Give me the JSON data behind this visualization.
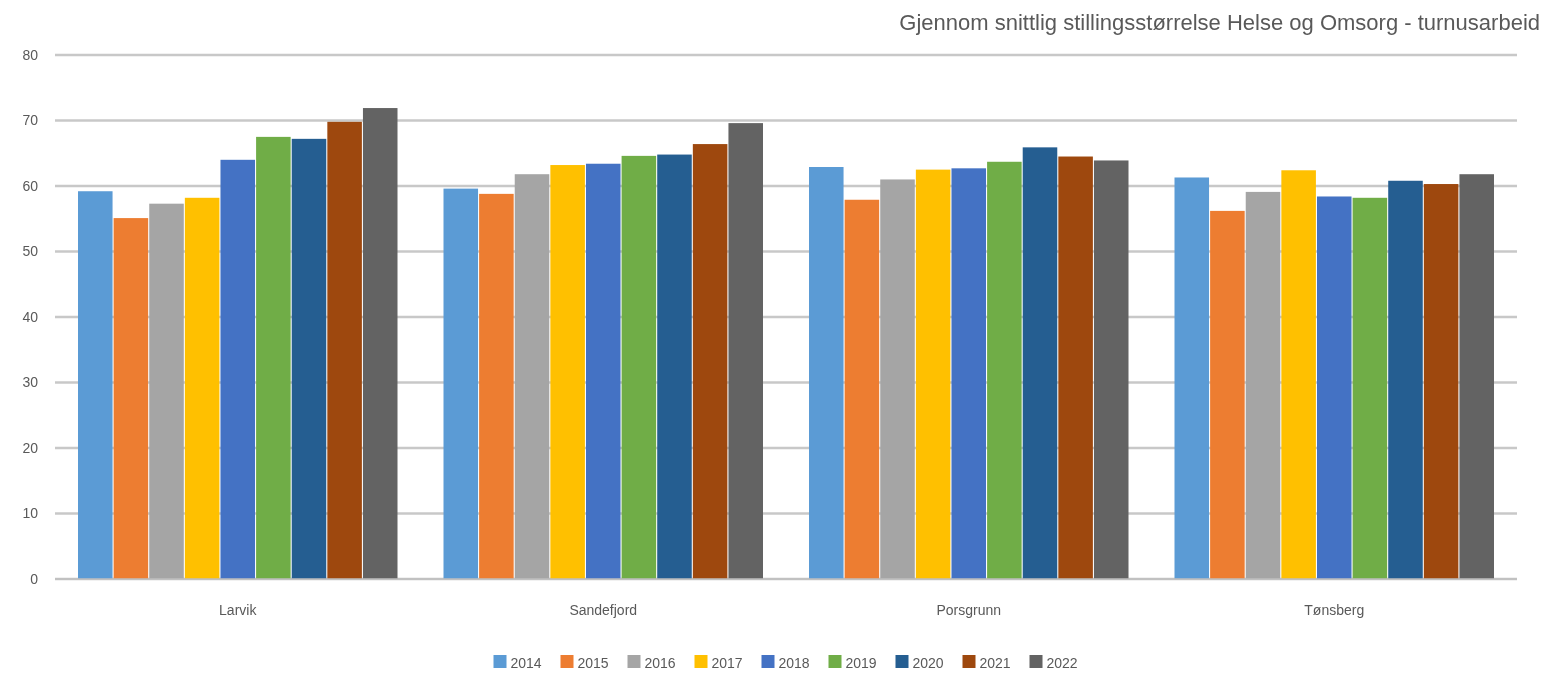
{
  "chart_data": {
    "type": "bar",
    "title": "Gjennom snittlig stillingsstørrelse Helse og Omsorg - turnusarbeid",
    "categories": [
      "Larvik",
      "Sandefjord",
      "Porsgrunn",
      "Tønsberg"
    ],
    "series": [
      {
        "name": "2014",
        "color": "#5b9bd5",
        "values": [
          59.2,
          59.6,
          62.9,
          61.3
        ]
      },
      {
        "name": "2015",
        "color": "#ed7d31",
        "values": [
          55.1,
          58.8,
          57.9,
          56.2
        ]
      },
      {
        "name": "2016",
        "color": "#a5a5a5",
        "values": [
          57.3,
          61.8,
          61.0,
          59.1
        ]
      },
      {
        "name": "2017",
        "color": "#ffc000",
        "values": [
          58.2,
          63.2,
          62.5,
          62.4
        ]
      },
      {
        "name": "2018",
        "color": "#4472c4",
        "values": [
          64.0,
          63.4,
          62.7,
          58.4
        ]
      },
      {
        "name": "2019",
        "color": "#70ad47",
        "values": [
          67.5,
          64.6,
          63.7,
          58.2
        ]
      },
      {
        "name": "2020",
        "color": "#255e91",
        "values": [
          67.2,
          64.8,
          65.9,
          60.8
        ]
      },
      {
        "name": "2021",
        "color": "#9e480e",
        "values": [
          69.8,
          66.4,
          64.5,
          60.3
        ]
      },
      {
        "name": "2022",
        "color": "#636363",
        "values": [
          71.9,
          69.6,
          63.9,
          61.8
        ]
      }
    ],
    "ylim": [
      0,
      80
    ],
    "yticks": [
      0,
      10,
      20,
      30,
      40,
      50,
      60,
      70,
      80
    ],
    "grid": "y",
    "legend": "bottom"
  }
}
